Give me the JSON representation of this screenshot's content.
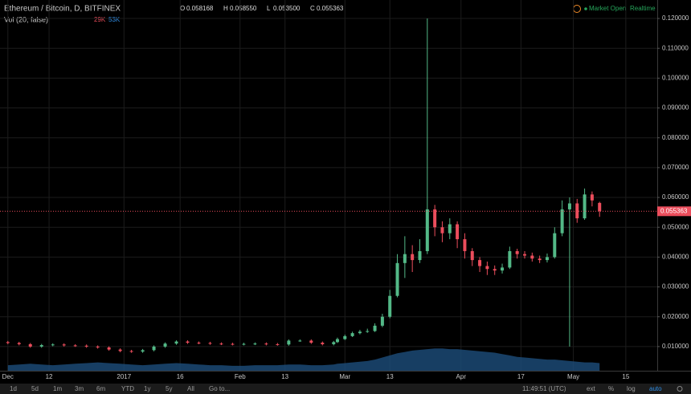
{
  "header": {
    "symbol": "Ethereum / Bitcoin, D, BITFINEX",
    "ohlc": [
      {
        "label": "O",
        "value": "0.058168"
      },
      {
        "label": "H",
        "value": "0.058550"
      },
      {
        "label": "L",
        "value": "0.053500"
      },
      {
        "label": "C",
        "value": "0.055363"
      }
    ],
    "indicator": "Vol (20, false)",
    "indicator_values": [
      "29K",
      "53K"
    ],
    "status": "Market Open",
    "feed": "Realtime"
  },
  "toolbar": {
    "ranges": [
      "1d",
      "5d",
      "1m",
      "3m",
      "6m",
      "YTD",
      "1y",
      "5y",
      "All",
      "Go to..."
    ],
    "time": "11:49:51 (UTC)",
    "options": [
      "ext",
      "%",
      "log",
      "auto"
    ]
  },
  "chart_data": {
    "type": "candlestick",
    "up_color": "#53b987",
    "down_color": "#eb4d5c",
    "volume_color": "#1d4e7c",
    "grid": true,
    "xlim": [
      -2.1,
      173.4
    ],
    "ylim": [
      0.0019,
      0.1262
    ],
    "vlim": [
      0,
      150
    ],
    "xticks": [
      {
        "value": 0,
        "label": "Dec"
      },
      {
        "value": 11,
        "label": "12"
      },
      {
        "value": 31,
        "label": "2017"
      },
      {
        "value": 46,
        "label": "16"
      },
      {
        "value": 62,
        "label": "Feb"
      },
      {
        "value": 74,
        "label": "13"
      },
      {
        "value": 90,
        "label": "Mar"
      },
      {
        "value": 102,
        "label": "13"
      },
      {
        "value": 121,
        "label": "Apr"
      },
      {
        "value": 137,
        "label": "17"
      },
      {
        "value": 151,
        "label": "May"
      },
      {
        "value": 165,
        "label": "15"
      }
    ],
    "yticks": [
      {
        "value": 0.01,
        "label": "0.010000"
      },
      {
        "value": 0.02,
        "label": "0.020000"
      },
      {
        "value": 0.03,
        "label": "0.030000"
      },
      {
        "value": 0.04,
        "label": "0.040000"
      },
      {
        "value": 0.05,
        "label": "0.050000"
      },
      {
        "value": 0.06,
        "label": "0.060000"
      },
      {
        "value": 0.07,
        "label": "0.070000"
      },
      {
        "value": 0.08,
        "label": "0.080000"
      },
      {
        "value": 0.09,
        "label": "0.090000"
      },
      {
        "value": 0.1,
        "label": "0.100000"
      },
      {
        "value": 0.11,
        "label": "0.110000"
      },
      {
        "value": 0.12,
        "label": "0.120000"
      }
    ],
    "x": [
      0,
      3,
      6,
      9,
      12,
      15,
      18,
      21,
      24,
      27,
      30,
      33,
      36,
      39,
      42,
      45,
      48,
      51,
      54,
      57,
      60,
      63,
      66,
      69,
      72,
      75,
      78,
      81,
      84,
      87,
      88,
      90,
      92,
      94,
      96,
      98,
      100,
      102,
      104,
      106,
      108,
      110,
      112,
      114,
      116,
      118,
      120,
      122,
      124,
      126,
      128,
      130,
      132,
      134,
      136,
      138,
      140,
      142,
      144,
      146,
      148,
      150,
      152,
      154,
      156,
      158
    ],
    "open": [
      0.0115,
      0.0112,
      0.0108,
      0.01,
      0.0105,
      0.0107,
      0.0104,
      0.0103,
      0.01,
      0.0097,
      0.009,
      0.0085,
      0.0083,
      0.0088,
      0.01,
      0.011,
      0.0117,
      0.0113,
      0.0112,
      0.011,
      0.0109,
      0.0108,
      0.0109,
      0.011,
      0.0108,
      0.0107,
      0.012,
      0.012,
      0.0113,
      0.0108,
      0.0115,
      0.0125,
      0.0135,
      0.0145,
      0.015,
      0.0152,
      0.017,
      0.02,
      0.027,
      0.038,
      0.041,
      0.039,
      0.042,
      0.056,
      0.05,
      0.048,
      0.051,
      0.046,
      0.042,
      0.039,
      0.037,
      0.036,
      0.0355,
      0.0365,
      0.042,
      0.041,
      0.0405,
      0.0395,
      0.039,
      0.04,
      0.048,
      0.056,
      0.058,
      0.053,
      0.061,
      0.058168
    ],
    "high": [
      0.0119,
      0.0116,
      0.0112,
      0.0109,
      0.0111,
      0.0111,
      0.0108,
      0.0107,
      0.0104,
      0.0101,
      0.0094,
      0.0089,
      0.0092,
      0.0104,
      0.0114,
      0.0121,
      0.0121,
      0.0117,
      0.0116,
      0.0114,
      0.0113,
      0.0113,
      0.0114,
      0.0114,
      0.0112,
      0.0124,
      0.0124,
      0.0124,
      0.0117,
      0.0119,
      0.013,
      0.014,
      0.015,
      0.0156,
      0.016,
      0.0178,
      0.021,
      0.029,
      0.041,
      0.047,
      0.044,
      0.046,
      0.12,
      0.0575,
      0.052,
      0.053,
      0.052,
      0.048,
      0.043,
      0.04,
      0.0385,
      0.0372,
      0.0378,
      0.0435,
      0.0428,
      0.042,
      0.0415,
      0.0405,
      0.0412,
      0.05,
      0.059,
      0.06,
      0.0595,
      0.063,
      0.062,
      0.05855
    ],
    "low": [
      0.0108,
      0.0104,
      0.0096,
      0.0096,
      0.0101,
      0.01,
      0.0099,
      0.0096,
      0.0093,
      0.0086,
      0.0081,
      0.0079,
      0.0079,
      0.0084,
      0.0096,
      0.0106,
      0.0109,
      0.0108,
      0.0106,
      0.0105,
      0.0104,
      0.0104,
      0.0105,
      0.0104,
      0.0103,
      0.0103,
      0.0116,
      0.0109,
      0.0104,
      0.0104,
      0.0112,
      0.0122,
      0.0132,
      0.0141,
      0.0146,
      0.0149,
      0.0165,
      0.0195,
      0.0265,
      0.033,
      0.035,
      0.038,
      0.041,
      0.047,
      0.045,
      0.046,
      0.043,
      0.0395,
      0.037,
      0.035,
      0.034,
      0.034,
      0.0345,
      0.036,
      0.0395,
      0.0395,
      0.0385,
      0.038,
      0.0382,
      0.0395,
      0.047,
      0.01,
      0.0515,
      0.0525,
      0.057,
      0.0535
    ],
    "close": [
      0.0112,
      0.0108,
      0.01,
      0.0105,
      0.0107,
      0.0104,
      0.0103,
      0.01,
      0.0097,
      0.009,
      0.0085,
      0.0083,
      0.0088,
      0.01,
      0.011,
      0.0117,
      0.0113,
      0.0112,
      0.011,
      0.0109,
      0.0108,
      0.0109,
      0.011,
      0.0108,
      0.0107,
      0.012,
      0.012,
      0.0113,
      0.0108,
      0.0115,
      0.0125,
      0.0135,
      0.0145,
      0.015,
      0.0152,
      0.017,
      0.02,
      0.027,
      0.038,
      0.041,
      0.039,
      0.042,
      0.056,
      0.05,
      0.048,
      0.051,
      0.046,
      0.042,
      0.039,
      0.037,
      0.036,
      0.0355,
      0.0365,
      0.042,
      0.041,
      0.0405,
      0.0395,
      0.039,
      0.04,
      0.048,
      0.056,
      0.058,
      0.053,
      0.061,
      0.059,
      0.055363
    ],
    "volume": [
      8,
      9,
      10,
      9,
      8,
      9,
      10,
      11,
      12,
      11,
      10,
      9,
      8,
      9,
      10,
      11,
      10,
      9,
      8,
      8,
      7,
      7,
      8,
      8,
      8,
      9,
      9,
      8,
      8,
      9,
      10,
      11,
      12,
      13,
      14,
      16,
      19,
      22,
      25,
      27,
      29,
      30,
      31,
      32,
      32,
      31,
      31,
      30,
      29,
      28,
      27,
      26,
      24,
      22,
      20,
      19,
      18,
      17,
      16,
      16,
      15,
      14,
      13,
      12,
      12,
      11
    ]
  }
}
